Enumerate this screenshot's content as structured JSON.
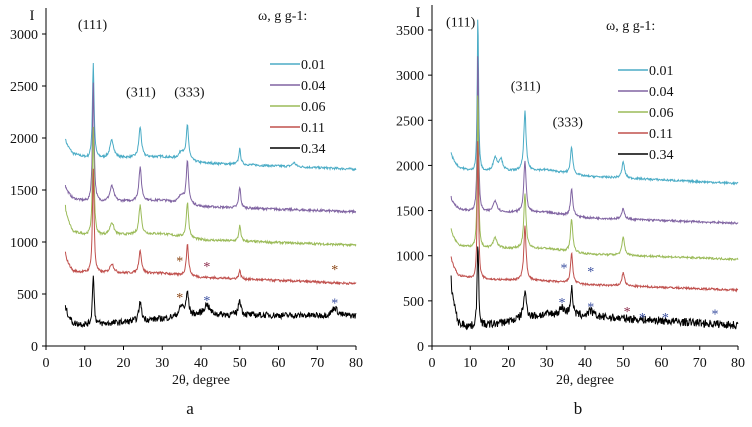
{
  "chart_data": [
    {
      "type": "line",
      "panel_label": "a",
      "ylabel": "I",
      "xlabel": "2θ, degree",
      "xlim": [
        0,
        80
      ],
      "ylim": [
        0,
        3000
      ],
      "xticks": [
        0,
        10,
        20,
        30,
        40,
        50,
        60,
        70,
        80
      ],
      "yticks": [
        0,
        500,
        1000,
        1500,
        2000,
        2500,
        3000
      ],
      "legend_title": "ω, g g-1:",
      "legend_position": "top-right",
      "annotations": [
        {
          "text": "(111)",
          "x": 12,
          "y": 3050
        },
        {
          "text": "(311)",
          "x": 24.5,
          "y": 2400
        },
        {
          "text": "(333)",
          "x": 37,
          "y": 2400
        }
      ],
      "asterisks": [
        {
          "x": 34.5,
          "y": 830,
          "color": "#8b4513"
        },
        {
          "x": 41.5,
          "y": 780,
          "color": "#8b2a4a"
        },
        {
          "x": 74.5,
          "y": 750,
          "color": "#8b4513"
        },
        {
          "x": 34.5,
          "y": 480,
          "color": "#8b4513"
        },
        {
          "x": 41.5,
          "y": 450,
          "color": "#3a4fa0"
        },
        {
          "x": 74.5,
          "y": 430,
          "color": "#3a4fa0"
        }
      ],
      "series": [
        {
          "name": "0.01",
          "color": "#4bacc6",
          "start": 2000,
          "base": [
            [
              7,
              1850
            ],
            [
              11,
              1800
            ],
            [
              30,
              1820
            ],
            [
              40,
              1760
            ],
            [
              80,
              1700
            ]
          ],
          "peaks": [
            [
              12.2,
              920,
              0.25
            ],
            [
              17,
              170,
              0.6
            ],
            [
              24.3,
              290,
              0.4
            ],
            [
              35,
              80,
              0.8
            ],
            [
              36.5,
              330,
              0.35
            ],
            [
              50,
              150,
              0.3
            ],
            [
              64,
              40,
              0.5
            ]
          ]
        },
        {
          "name": "0.04",
          "color": "#8064a2",
          "start": 1550,
          "base": [
            [
              7,
              1420
            ],
            [
              11,
              1380
            ],
            [
              30,
              1400
            ],
            [
              40,
              1340
            ],
            [
              80,
              1290
            ]
          ],
          "peaks": [
            [
              12.2,
              1150,
              0.25
            ],
            [
              17,
              150,
              0.6
            ],
            [
              24.3,
              320,
              0.4
            ],
            [
              35,
              80,
              0.8
            ],
            [
              36.5,
              400,
              0.35
            ],
            [
              50,
              200,
              0.3
            ]
          ]
        },
        {
          "name": "0.06",
          "color": "#9bbb59",
          "start": 1350,
          "base": [
            [
              7,
              1100
            ],
            [
              11,
              1060
            ],
            [
              30,
              1080
            ],
            [
              40,
              1020
            ],
            [
              80,
              970
            ]
          ],
          "peaks": [
            [
              12.2,
              1050,
              0.25
            ],
            [
              17,
              120,
              0.6
            ],
            [
              24.3,
              280,
              0.4
            ],
            [
              36.5,
              340,
              0.35
            ],
            [
              50,
              150,
              0.3
            ]
          ]
        },
        {
          "name": "0.11",
          "color": "#c0504d",
          "start": 900,
          "base": [
            [
              7,
              720
            ],
            [
              11,
              700
            ],
            [
              30,
              700
            ],
            [
              40,
              660
            ],
            [
              80,
              600
            ]
          ],
          "peaks": [
            [
              12.2,
              1000,
              0.25
            ],
            [
              17,
              90,
              0.6
            ],
            [
              24.3,
              220,
              0.4
            ],
            [
              36.5,
              300,
              0.35
            ],
            [
              50,
              80,
              0.3
            ]
          ]
        },
        {
          "name": "0.34",
          "color": "#000000",
          "start": 400,
          "base": [
            [
              7,
              220
            ],
            [
              11,
              200
            ],
            [
              30,
              260
            ],
            [
              40,
              300
            ],
            [
              80,
              290
            ]
          ],
          "peaks": [
            [
              12.2,
              500,
              0.25
            ],
            [
              24.3,
              180,
              0.4
            ],
            [
              35,
              100,
              0.8
            ],
            [
              36.5,
              220,
              0.35
            ],
            [
              41.5,
              100,
              0.8
            ],
            [
              50,
              150,
              0.4
            ],
            [
              74.5,
              80,
              0.8
            ]
          ],
          "noise": 60
        }
      ]
    },
    {
      "type": "line",
      "panel_label": "b",
      "ylabel": "I",
      "xlabel": "2θ, degree",
      "xlim": [
        0,
        80
      ],
      "ylim": [
        0,
        3500
      ],
      "xticks": [
        0,
        10,
        20,
        30,
        40,
        50,
        60,
        70,
        80
      ],
      "yticks": [
        0,
        500,
        1000,
        1500,
        2000,
        2500,
        3000,
        3500
      ],
      "legend_title": "ω, g g-1:",
      "legend_position": "top-right",
      "annotations": [
        {
          "text": "(111)",
          "x": 7.5,
          "y": 3540
        },
        {
          "text": "(311)",
          "x": 24.5,
          "y": 2830
        },
        {
          "text": "(333)",
          "x": 35.5,
          "y": 2430
        }
      ],
      "asterisks": [
        {
          "x": 34.5,
          "y": 880,
          "color": "#3a4fa0"
        },
        {
          "x": 41.5,
          "y": 840,
          "color": "#3a4fa0"
        },
        {
          "x": 34,
          "y": 500,
          "color": "#3a4fa0"
        },
        {
          "x": 41.5,
          "y": 450,
          "color": "#3a4fa0"
        },
        {
          "x": 51,
          "y": 400,
          "color": "#8b2a4a"
        },
        {
          "x": 55,
          "y": 330,
          "color": "#3a4fa0"
        },
        {
          "x": 61,
          "y": 330,
          "color": "#3a4fa0"
        },
        {
          "x": 74,
          "y": 370,
          "color": "#3a4fa0"
        }
      ],
      "series": [
        {
          "name": "0.01",
          "color": "#4bacc6",
          "start": 2150,
          "base": [
            [
              7,
              1980
            ],
            [
              11,
              1920
            ],
            [
              30,
              1950
            ],
            [
              40,
              1880
            ],
            [
              80,
              1800
            ]
          ],
          "peaks": [
            [
              12,
              1750,
              0.2
            ],
            [
              16.5,
              150,
              0.6
            ],
            [
              18,
              130,
              0.6
            ],
            [
              24.3,
              660,
              0.35
            ],
            [
              36.5,
              300,
              0.35
            ],
            [
              50,
              180,
              0.4
            ]
          ]
        },
        {
          "name": "0.04",
          "color": "#8064a2",
          "start": 1650,
          "base": [
            [
              7,
              1520
            ],
            [
              11,
              1480
            ],
            [
              30,
              1480
            ],
            [
              40,
              1420
            ],
            [
              80,
              1360
            ]
          ],
          "peaks": [
            [
              12,
              1800,
              0.2
            ],
            [
              16.5,
              130,
              0.6
            ],
            [
              24.3,
              580,
              0.35
            ],
            [
              36.5,
              300,
              0.35
            ],
            [
              50,
              120,
              0.4
            ]
          ]
        },
        {
          "name": "0.06",
          "color": "#9bbb59",
          "start": 1300,
          "base": [
            [
              7,
              1120
            ],
            [
              11,
              1080
            ],
            [
              30,
              1080
            ],
            [
              40,
              1020
            ],
            [
              80,
              960
            ]
          ],
          "peaks": [
            [
              12,
              1750,
              0.2
            ],
            [
              16.5,
              120,
              0.6
            ],
            [
              24.3,
              600,
              0.35
            ],
            [
              36.5,
              370,
              0.35
            ],
            [
              50,
              200,
              0.4
            ]
          ]
        },
        {
          "name": "0.11",
          "color": "#c0504d",
          "start": 1000,
          "base": [
            [
              7,
              780
            ],
            [
              11,
              740
            ],
            [
              30,
              720
            ],
            [
              40,
              680
            ],
            [
              80,
              620
            ]
          ],
          "peaks": [
            [
              12,
              1600,
              0.2
            ],
            [
              24.3,
              600,
              0.35
            ],
            [
              36.5,
              330,
              0.35
            ],
            [
              50,
              150,
              0.4
            ]
          ]
        },
        {
          "name": "0.34",
          "color": "#000000",
          "start": 750,
          "base": [
            [
              7,
              250
            ],
            [
              11,
              200
            ],
            [
              30,
              350
            ],
            [
              40,
              330
            ],
            [
              80,
              230
            ]
          ],
          "peaks": [
            [
              12,
              900,
              0.25
            ],
            [
              24.3,
              280,
              0.5
            ],
            [
              34,
              80,
              0.8
            ],
            [
              36.5,
              300,
              0.35
            ],
            [
              41.5,
              60,
              0.8
            ]
          ],
          "noise": 90
        }
      ]
    }
  ]
}
